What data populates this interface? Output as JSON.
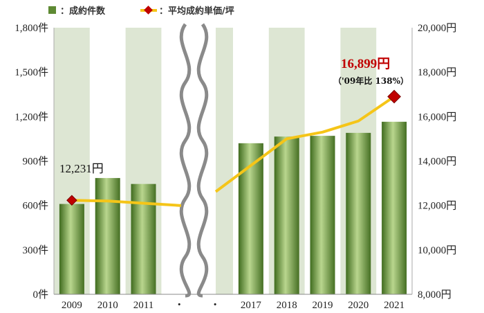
{
  "chart_data": {
    "type": "bar",
    "categories": [
      "2009",
      "2010",
      "2011",
      "・",
      "・",
      "2017",
      "2018",
      "2019",
      "2020",
      "2021"
    ],
    "series": [
      {
        "name": "成約件数",
        "type": "bar",
        "axis": "left",
        "color": "#6b9a3c",
        "values": [
          610,
          785,
          745,
          null,
          null,
          1020,
          1065,
          1070,
          1090,
          1165
        ]
      },
      {
        "name": "平均成約単価/坪",
        "type": "line",
        "axis": "right",
        "color": "#f5c518",
        "marker_color": "#c00000",
        "values": [
          12231,
          12200,
          12100,
          null,
          null,
          13800,
          15000,
          15300,
          15800,
          16899
        ]
      }
    ],
    "left_axis": {
      "ticks": [
        "1,800件",
        "1,500件",
        "1,200件",
        "900件",
        "600件",
        "300件",
        "0件"
      ],
      "ylim": [
        0,
        1800
      ]
    },
    "right_axis": {
      "ticks": [
        "20,000円",
        "18,000円",
        "16,000円",
        "14,000円",
        "12,000円",
        "10,000円",
        "8,000円"
      ],
      "ylim": [
        8000,
        20000
      ]
    },
    "annotations": {
      "start_price": "12,231円",
      "end_price": "16,899円",
      "end_note": "（'09年比 138%）"
    },
    "break_between": [
      "2011",
      "2017"
    ],
    "shaded_category_bands": true,
    "band_color": "#dde6d3",
    "legend_position": "top-left"
  }
}
